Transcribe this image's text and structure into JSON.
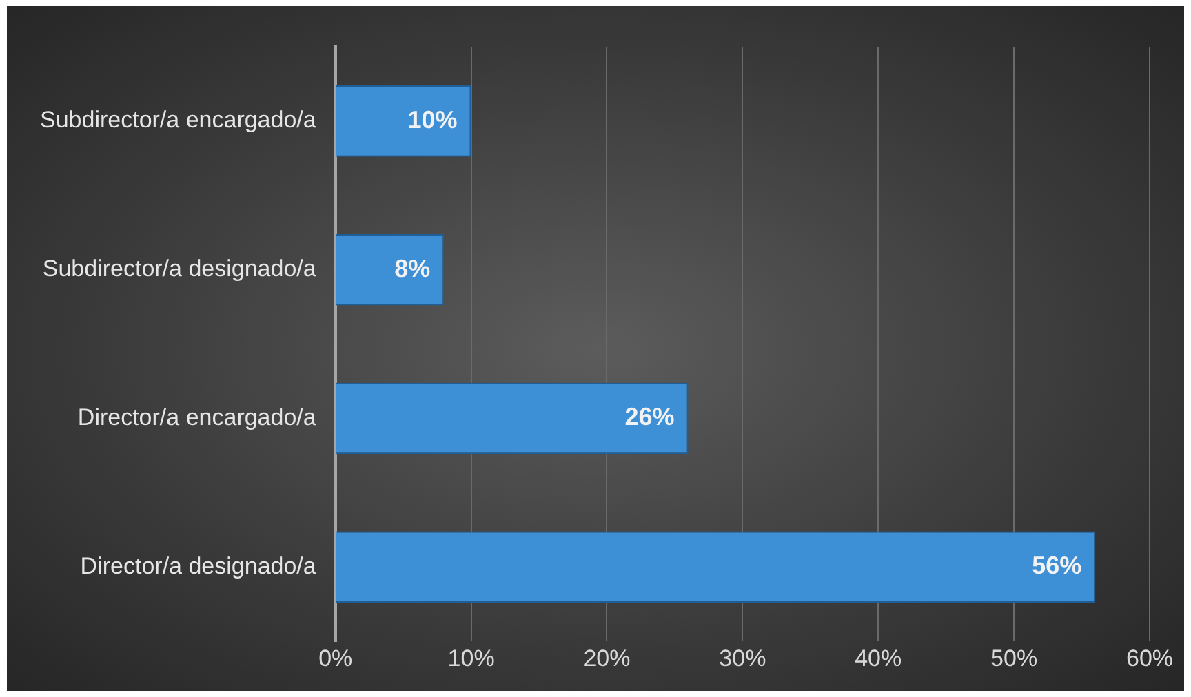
{
  "chart_data": {
    "type": "bar",
    "orientation": "horizontal",
    "categories": [
      "Subdirector/a encargado/a",
      "Subdirector/a designado/a",
      "Director/a encargado/a",
      "Director/a designado/a"
    ],
    "values": [
      10,
      8,
      26,
      56
    ],
    "value_labels": [
      "10%",
      "8%",
      "26%",
      "56%"
    ],
    "color": "#3d8fd6",
    "xlim": [
      0,
      60
    ],
    "xticks": [
      {
        "value": 0,
        "label": "0%"
      },
      {
        "value": 10,
        "label": "10%"
      },
      {
        "value": 20,
        "label": "20%"
      },
      {
        "value": 30,
        "label": "30%"
      },
      {
        "value": 40,
        "label": "40%"
      },
      {
        "value": 50,
        "label": "50%"
      },
      {
        "value": 60,
        "label": "60%"
      }
    ],
    "grid": "x",
    "legend": false
  }
}
